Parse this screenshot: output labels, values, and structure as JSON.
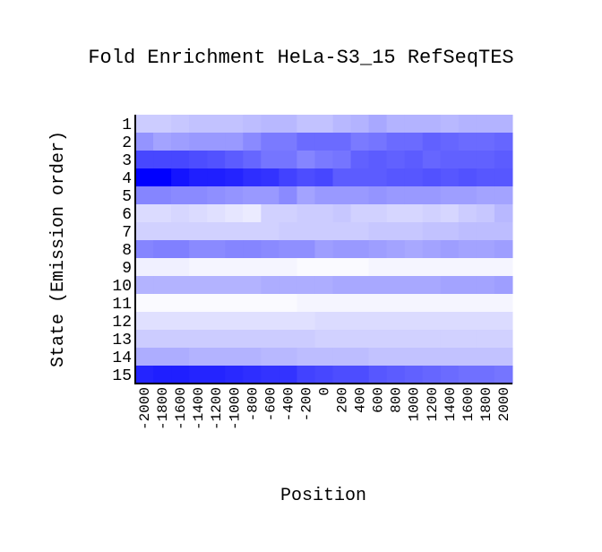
{
  "chart_data": {
    "type": "heatmap",
    "title": "Fold Enrichment HeLa-S3_15 RefSeqTES",
    "xlabel": "Position",
    "ylabel": "State (Emission order)",
    "states": [
      "1",
      "2",
      "3",
      "4",
      "5",
      "6",
      "7",
      "8",
      "9",
      "10",
      "11",
      "12",
      "13",
      "14",
      "15"
    ],
    "positions": [
      "-2000",
      "-1800",
      "-1600",
      "-1400",
      "-1200",
      "-1000",
      "-800",
      "-600",
      "-400",
      "-200",
      "0",
      "200",
      "400",
      "600",
      "800",
      "1000",
      "1200",
      "1400",
      "1600",
      "1800",
      "2000"
    ],
    "x_tick_labels": [
      "-2000",
      "-1800",
      "-1600",
      "-1400",
      "-1200",
      "-1000",
      "-800",
      "-600",
      "-400",
      "-200",
      "0",
      "200",
      "400",
      "600",
      "800",
      "1000",
      "1200",
      "1400",
      "1600",
      "1800",
      "2000"
    ],
    "value_range": [
      0,
      1
    ],
    "color_min": "#ffffff",
    "color_max": "#0000ff",
    "values": [
      [
        0.2,
        0.2,
        0.22,
        0.24,
        0.24,
        0.24,
        0.26,
        0.28,
        0.28,
        0.24,
        0.24,
        0.28,
        0.3,
        0.34,
        0.3,
        0.3,
        0.3,
        0.28,
        0.3,
        0.3,
        0.3
      ],
      [
        0.42,
        0.36,
        0.38,
        0.4,
        0.4,
        0.4,
        0.46,
        0.52,
        0.52,
        0.58,
        0.58,
        0.58,
        0.52,
        0.54,
        0.58,
        0.58,
        0.62,
        0.6,
        0.58,
        0.58,
        0.6
      ],
      [
        0.72,
        0.72,
        0.72,
        0.7,
        0.68,
        0.64,
        0.6,
        0.54,
        0.54,
        0.48,
        0.52,
        0.54,
        0.62,
        0.64,
        0.62,
        0.64,
        0.6,
        0.62,
        0.62,
        0.62,
        0.64
      ],
      [
        1.0,
        1.0,
        0.92,
        0.88,
        0.88,
        0.86,
        0.82,
        0.8,
        0.74,
        0.7,
        0.72,
        0.64,
        0.64,
        0.64,
        0.66,
        0.66,
        0.68,
        0.66,
        0.68,
        0.66,
        0.66
      ],
      [
        0.48,
        0.48,
        0.46,
        0.46,
        0.44,
        0.42,
        0.4,
        0.4,
        0.46,
        0.36,
        0.4,
        0.4,
        0.4,
        0.42,
        0.4,
        0.4,
        0.4,
        0.38,
        0.38,
        0.36,
        0.36
      ],
      [
        0.14,
        0.14,
        0.16,
        0.14,
        0.12,
        0.1,
        0.08,
        0.18,
        0.18,
        0.2,
        0.2,
        0.22,
        0.18,
        0.18,
        0.16,
        0.16,
        0.18,
        0.16,
        0.2,
        0.22,
        0.28
      ],
      [
        0.18,
        0.18,
        0.18,
        0.18,
        0.18,
        0.18,
        0.18,
        0.18,
        0.2,
        0.2,
        0.2,
        0.2,
        0.2,
        0.22,
        0.22,
        0.22,
        0.24,
        0.24,
        0.26,
        0.26,
        0.26
      ],
      [
        0.48,
        0.5,
        0.5,
        0.46,
        0.46,
        0.48,
        0.48,
        0.46,
        0.44,
        0.44,
        0.38,
        0.4,
        0.4,
        0.38,
        0.36,
        0.34,
        0.36,
        0.38,
        0.36,
        0.36,
        0.38
      ],
      [
        0.06,
        0.06,
        0.06,
        0.04,
        0.04,
        0.04,
        0.04,
        0.04,
        0.04,
        0.02,
        0.02,
        0.02,
        0.02,
        0.04,
        0.04,
        0.04,
        0.04,
        0.04,
        0.04,
        0.04,
        0.04
      ],
      [
        0.3,
        0.3,
        0.3,
        0.3,
        0.3,
        0.3,
        0.3,
        0.32,
        0.32,
        0.32,
        0.32,
        0.34,
        0.34,
        0.34,
        0.34,
        0.34,
        0.34,
        0.36,
        0.36,
        0.36,
        0.38
      ],
      [
        0.02,
        0.02,
        0.02,
        0.02,
        0.02,
        0.02,
        0.02,
        0.02,
        0.02,
        0.04,
        0.04,
        0.04,
        0.04,
        0.04,
        0.04,
        0.04,
        0.04,
        0.04,
        0.04,
        0.04,
        0.04
      ],
      [
        0.12,
        0.12,
        0.12,
        0.12,
        0.12,
        0.12,
        0.12,
        0.12,
        0.12,
        0.12,
        0.14,
        0.14,
        0.14,
        0.14,
        0.14,
        0.14,
        0.14,
        0.14,
        0.14,
        0.14,
        0.14
      ],
      [
        0.2,
        0.2,
        0.2,
        0.2,
        0.2,
        0.2,
        0.2,
        0.2,
        0.2,
        0.2,
        0.18,
        0.18,
        0.18,
        0.18,
        0.18,
        0.18,
        0.18,
        0.18,
        0.18,
        0.18,
        0.18
      ],
      [
        0.32,
        0.32,
        0.32,
        0.3,
        0.3,
        0.3,
        0.3,
        0.28,
        0.28,
        0.26,
        0.26,
        0.26,
        0.26,
        0.24,
        0.24,
        0.24,
        0.24,
        0.24,
        0.24,
        0.24,
        0.24
      ],
      [
        0.86,
        0.88,
        0.88,
        0.86,
        0.86,
        0.84,
        0.82,
        0.8,
        0.8,
        0.74,
        0.72,
        0.7,
        0.7,
        0.66,
        0.64,
        0.62,
        0.6,
        0.58,
        0.56,
        0.56,
        0.54
      ]
    ]
  }
}
